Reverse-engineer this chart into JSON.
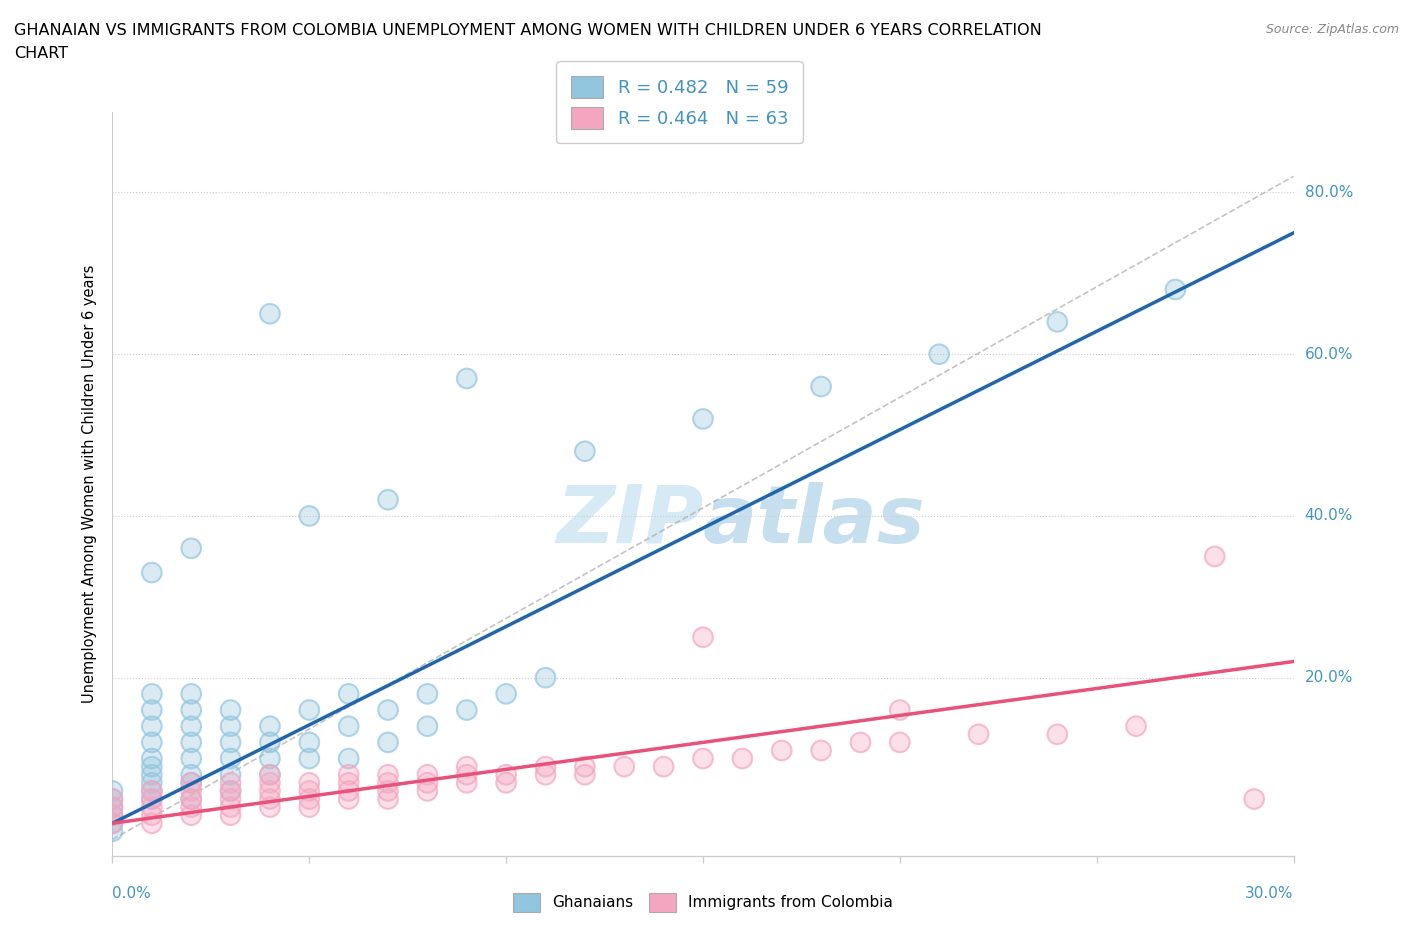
{
  "title": "GHANAIAN VS IMMIGRANTS FROM COLOMBIA UNEMPLOYMENT AMONG WOMEN WITH CHILDREN UNDER 6 YEARS CORRELATION\nCHART",
  "source": "Source: ZipAtlas.com",
  "ylabel": "Unemployment Among Women with Children Under 6 years",
  "xlim": [
    0.0,
    0.3
  ],
  "ylim": [
    -0.02,
    0.9
  ],
  "legend_r1": "R = 0.482   N = 59",
  "legend_r2": "R = 0.464   N = 63",
  "blue_color": "#92c5de",
  "pink_color": "#f4a6c0",
  "blue_line_color": "#2166ac",
  "pink_line_color": "#e8517a",
  "watermark_color": "#d5eaf5",
  "ghanaian_scatter": [
    [
      0.0,
      0.03
    ],
    [
      0.0,
      0.05
    ],
    [
      0.0,
      0.06
    ],
    [
      0.0,
      0.04
    ],
    [
      0.01,
      0.05
    ],
    [
      0.01,
      0.07
    ],
    [
      0.01,
      0.08
    ],
    [
      0.01,
      0.06
    ],
    [
      0.01,
      0.09
    ],
    [
      0.01,
      0.1
    ],
    [
      0.01,
      0.12
    ],
    [
      0.01,
      0.14
    ],
    [
      0.01,
      0.16
    ],
    [
      0.01,
      0.18
    ],
    [
      0.02,
      0.05
    ],
    [
      0.02,
      0.07
    ],
    [
      0.02,
      0.08
    ],
    [
      0.02,
      0.1
    ],
    [
      0.02,
      0.12
    ],
    [
      0.02,
      0.14
    ],
    [
      0.02,
      0.16
    ],
    [
      0.02,
      0.18
    ],
    [
      0.03,
      0.06
    ],
    [
      0.03,
      0.08
    ],
    [
      0.03,
      0.1
    ],
    [
      0.03,
      0.12
    ],
    [
      0.03,
      0.14
    ],
    [
      0.03,
      0.16
    ],
    [
      0.04,
      0.08
    ],
    [
      0.04,
      0.1
    ],
    [
      0.04,
      0.12
    ],
    [
      0.04,
      0.14
    ],
    [
      0.05,
      0.1
    ],
    [
      0.05,
      0.12
    ],
    [
      0.05,
      0.16
    ],
    [
      0.06,
      0.1
    ],
    [
      0.06,
      0.14
    ],
    [
      0.06,
      0.18
    ],
    [
      0.07,
      0.12
    ],
    [
      0.07,
      0.16
    ],
    [
      0.08,
      0.14
    ],
    [
      0.08,
      0.18
    ],
    [
      0.09,
      0.16
    ],
    [
      0.1,
      0.18
    ],
    [
      0.01,
      0.33
    ],
    [
      0.02,
      0.36
    ],
    [
      0.05,
      0.4
    ],
    [
      0.07,
      0.42
    ],
    [
      0.04,
      0.65
    ],
    [
      0.09,
      0.57
    ],
    [
      0.12,
      0.48
    ],
    [
      0.15,
      0.52
    ],
    [
      0.18,
      0.56
    ],
    [
      0.21,
      0.6
    ],
    [
      0.24,
      0.64
    ],
    [
      0.27,
      0.68
    ],
    [
      0.0,
      0.02
    ],
    [
      0.0,
      0.01
    ],
    [
      0.11,
      0.2
    ]
  ],
  "colombia_scatter": [
    [
      0.0,
      0.02
    ],
    [
      0.0,
      0.03
    ],
    [
      0.0,
      0.04
    ],
    [
      0.0,
      0.05
    ],
    [
      0.01,
      0.02
    ],
    [
      0.01,
      0.03
    ],
    [
      0.01,
      0.04
    ],
    [
      0.01,
      0.05
    ],
    [
      0.01,
      0.06
    ],
    [
      0.02,
      0.03
    ],
    [
      0.02,
      0.04
    ],
    [
      0.02,
      0.05
    ],
    [
      0.02,
      0.06
    ],
    [
      0.02,
      0.07
    ],
    [
      0.03,
      0.03
    ],
    [
      0.03,
      0.04
    ],
    [
      0.03,
      0.05
    ],
    [
      0.03,
      0.06
    ],
    [
      0.03,
      0.07
    ],
    [
      0.04,
      0.04
    ],
    [
      0.04,
      0.05
    ],
    [
      0.04,
      0.06
    ],
    [
      0.04,
      0.07
    ],
    [
      0.04,
      0.08
    ],
    [
      0.05,
      0.04
    ],
    [
      0.05,
      0.05
    ],
    [
      0.05,
      0.06
    ],
    [
      0.05,
      0.07
    ],
    [
      0.06,
      0.05
    ],
    [
      0.06,
      0.06
    ],
    [
      0.06,
      0.07
    ],
    [
      0.06,
      0.08
    ],
    [
      0.07,
      0.05
    ],
    [
      0.07,
      0.06
    ],
    [
      0.07,
      0.07
    ],
    [
      0.07,
      0.08
    ],
    [
      0.08,
      0.06
    ],
    [
      0.08,
      0.07
    ],
    [
      0.08,
      0.08
    ],
    [
      0.09,
      0.07
    ],
    [
      0.09,
      0.08
    ],
    [
      0.09,
      0.09
    ],
    [
      0.1,
      0.07
    ],
    [
      0.1,
      0.08
    ],
    [
      0.11,
      0.08
    ],
    [
      0.11,
      0.09
    ],
    [
      0.12,
      0.08
    ],
    [
      0.12,
      0.09
    ],
    [
      0.13,
      0.09
    ],
    [
      0.14,
      0.09
    ],
    [
      0.15,
      0.1
    ],
    [
      0.16,
      0.1
    ],
    [
      0.17,
      0.11
    ],
    [
      0.18,
      0.11
    ],
    [
      0.19,
      0.12
    ],
    [
      0.2,
      0.12
    ],
    [
      0.22,
      0.13
    ],
    [
      0.24,
      0.13
    ],
    [
      0.26,
      0.14
    ],
    [
      0.28,
      0.35
    ],
    [
      0.29,
      0.05
    ],
    [
      0.15,
      0.25
    ],
    [
      0.2,
      0.16
    ]
  ]
}
